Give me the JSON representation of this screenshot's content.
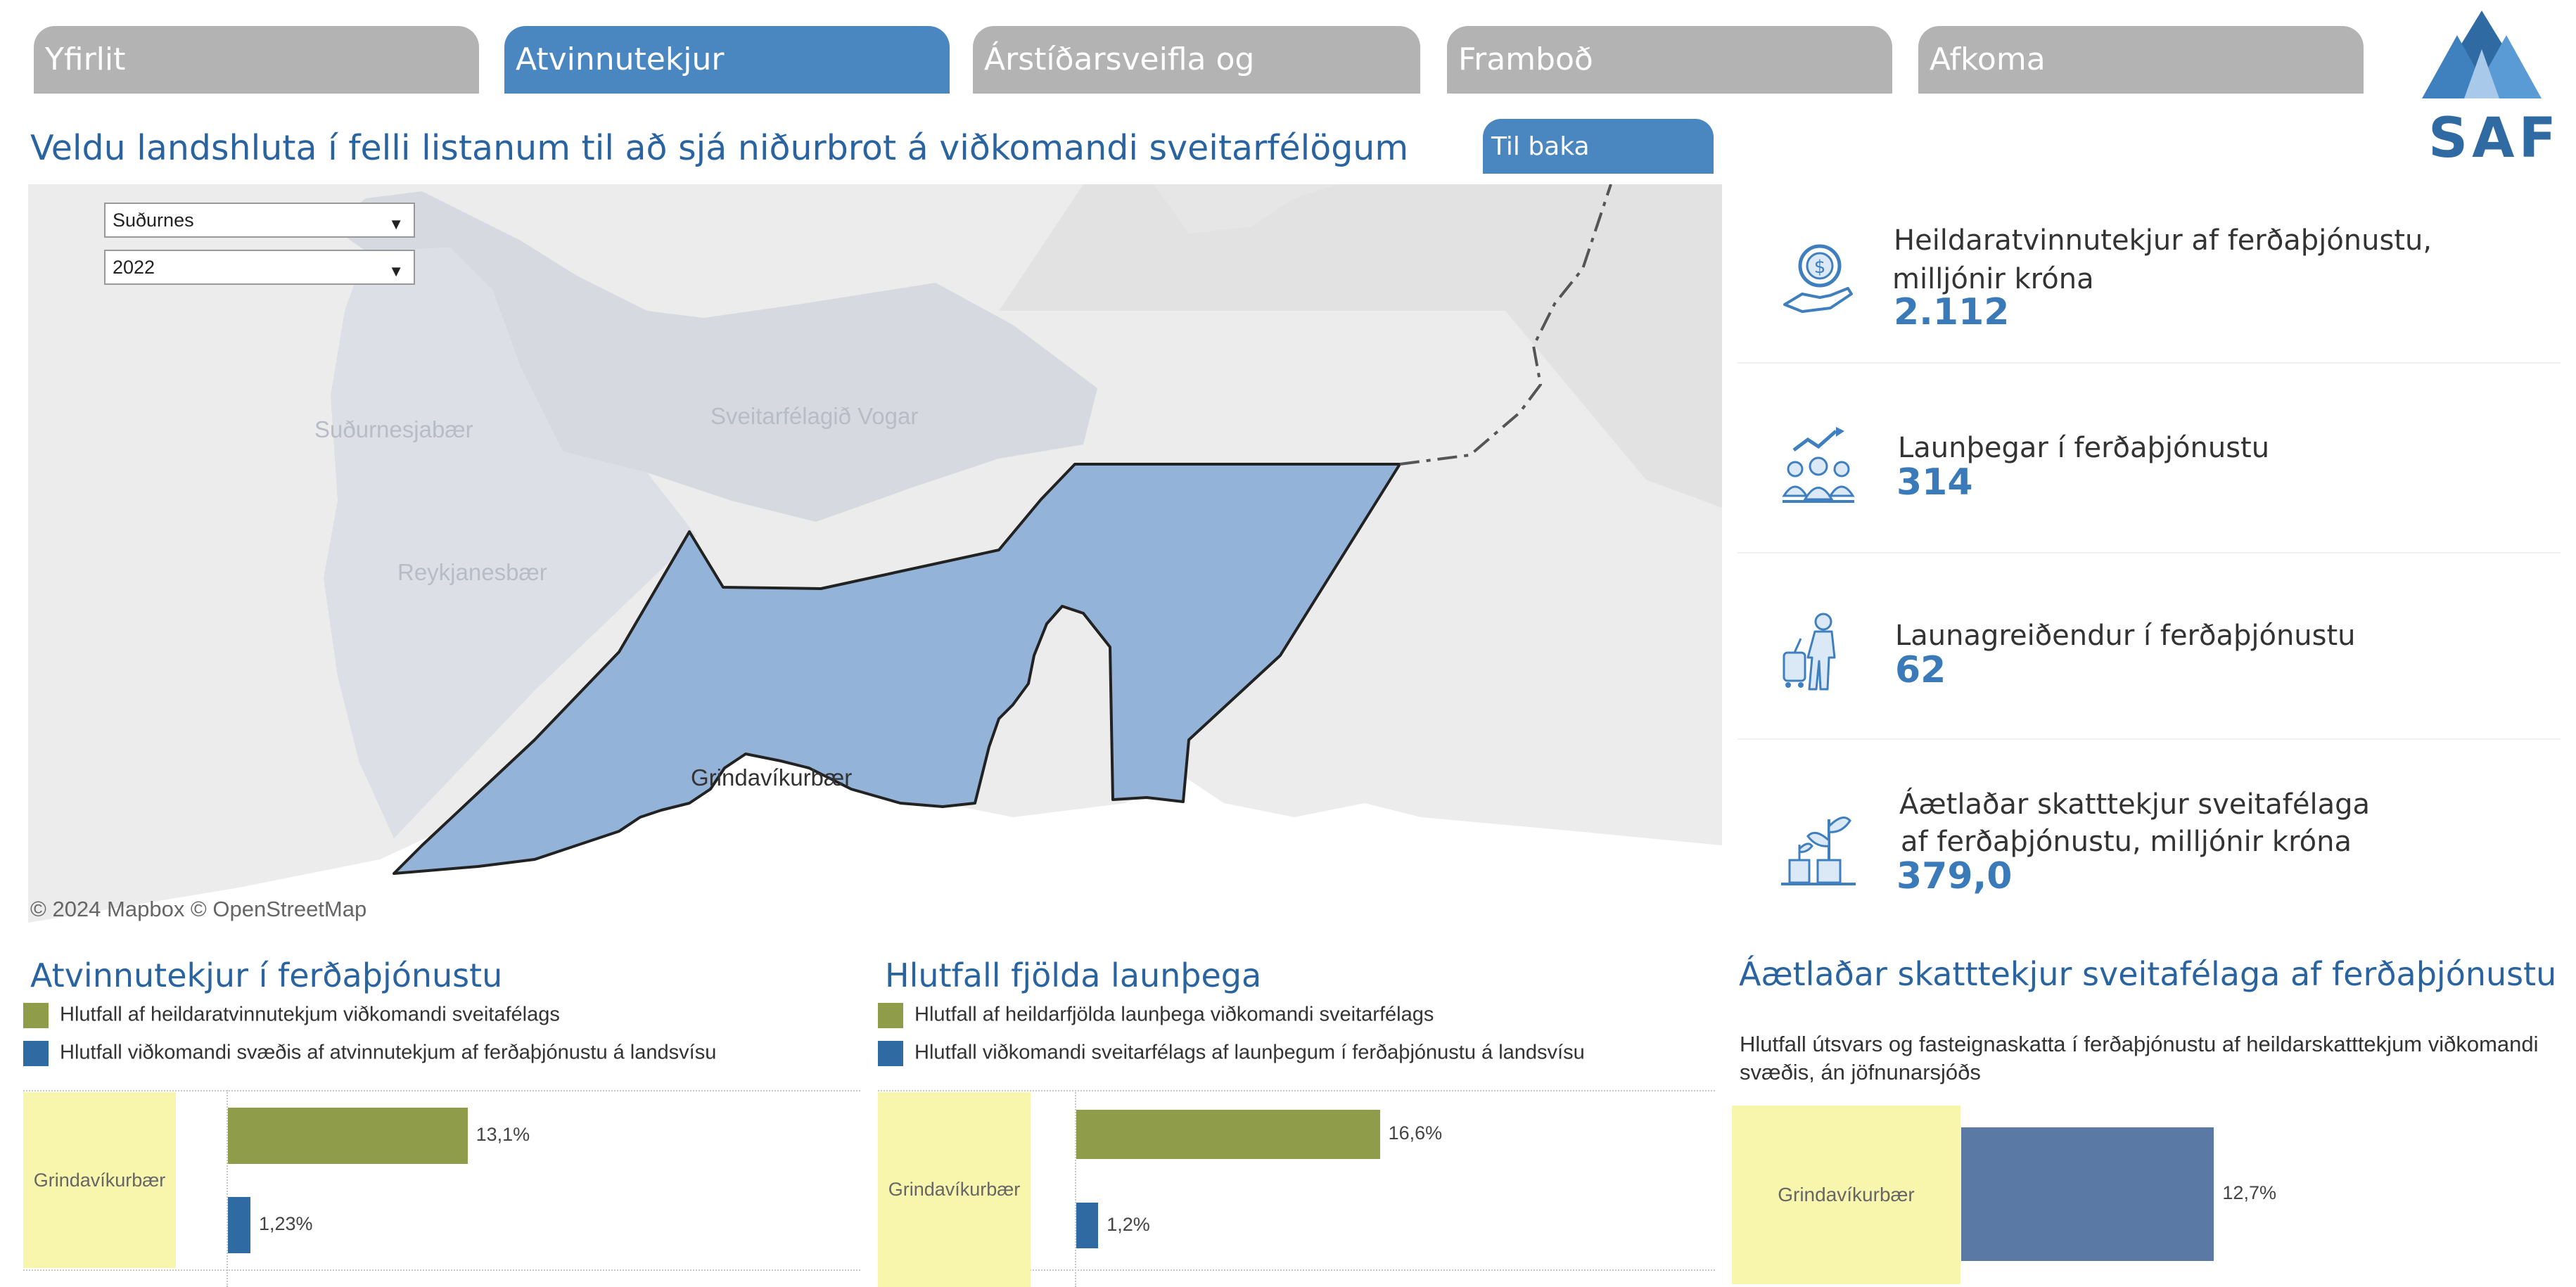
{
  "tabs": [
    {
      "label": "Yfirlit",
      "active": false
    },
    {
      "label": "Atvinnutekjur",
      "active": true
    },
    {
      "label": "Árstíðarsveifla og gistinætur",
      "active": false
    },
    {
      "label": "Framboð",
      "active": false
    },
    {
      "label": "Afkoma",
      "active": false
    }
  ],
  "logo": {
    "text": "SAF"
  },
  "header": {
    "title": "Veldu landshluta í felli listanum til að sjá niðurbrot á viðkomandi sveitarfélögum",
    "back_button": "Til baka"
  },
  "filters": {
    "region": "Suðurnes",
    "year": "2022"
  },
  "map": {
    "labels": {
      "sudurnesjabaer": "Suðurnesjabær",
      "vogar": "Sveitarfélagið Vogar",
      "reykjanesbaer": "Reykjanesbær",
      "grindavik": "Grindavíkurbær"
    },
    "credit": "© 2024 Mapbox  © OpenStreetMap",
    "colors": {
      "highlight": "#93b3d8",
      "land": "#d6d9df",
      "background": "#ebebeb"
    }
  },
  "kpis": [
    {
      "label_line1": "Heildaratvinnutekjur af ferðaþjónustu,",
      "label_line2": "milljónir króna",
      "value": "2.112",
      "icon": "money-hand-icon"
    },
    {
      "label_line1": "Launþegar í ferðaþjónustu",
      "label_line2": "",
      "value": "314",
      "icon": "employees-growth-icon"
    },
    {
      "label_line1": "Launagreiðendur í ferðaþjónustu",
      "label_line2": "",
      "value": "62",
      "icon": "traveler-icon"
    },
    {
      "label_line1": "Áætlaðar skatttekjur sveitafélaga",
      "label_line2": "af ferðaþjónustu, milljónir króna",
      "value": "379,0",
      "icon": "plant-coins-icon"
    }
  ],
  "charts": {
    "income": {
      "title": "Atvinnutekjur í ferðaþjónustu",
      "legend": [
        {
          "label": "Hlutfall af heildaratvinnutekjum viðkomandi sveitafélags",
          "color": "#8f9c4a"
        },
        {
          "label": "Hlutfall viðkomandi svæðis af atvinnutekjum af ferðaþjónustu á landsvísu",
          "color": "#2f6aa3"
        }
      ],
      "category": "Grindavíkurbær",
      "bars": [
        {
          "value": 13.1,
          "label": "13,1%",
          "color": "#8f9c4a"
        },
        {
          "value": 1.23,
          "label": "1,23%",
          "color": "#2f6aa3"
        }
      ]
    },
    "employees": {
      "title": "Hlutfall fjölda launþega",
      "legend": [
        {
          "label": "Hlutfall af heildarfjölda launþega viðkomandi sveitarfélags",
          "color": "#8f9c4a"
        },
        {
          "label": "Hlutfall viðkomandi sveitarfélags af launþegum í ferðaþjónustu á landsvísu",
          "color": "#2f6aa3"
        }
      ],
      "category": "Grindavíkurbær",
      "bars": [
        {
          "value": 16.6,
          "label": "16,6%",
          "color": "#8f9c4a"
        },
        {
          "value": 1.2,
          "label": "1,2%",
          "color": "#2f6aa3"
        }
      ]
    },
    "tax": {
      "title": "Áætlaðar skatttekjur sveitafélaga af ferðaþjónustu",
      "subtitle_line1": "Hlutfall útsvars og fasteignaskatta í ferðaþjónustu af heildarskatttekjum viðkomandi",
      "subtitle_line2": "svæðis, án jöfnunarsjóðs",
      "category": "Grindavíkurbær",
      "bars": [
        {
          "value": 12.7,
          "label": "12,7%",
          "color": "#5a79a5"
        }
      ]
    }
  },
  "chart_data": [
    {
      "type": "bar",
      "title": "Atvinnutekjur í ferðaþjónustu",
      "categories": [
        "Grindavíkurbær"
      ],
      "series": [
        {
          "name": "Hlutfall af heildaratvinnutekjum viðkomandi sveitafélags",
          "values": [
            13.1
          ]
        },
        {
          "name": "Hlutfall viðkomandi svæðis af atvinnutekjum af ferðaþjónustu á landsvísu",
          "values": [
            1.23
          ]
        }
      ]
    },
    {
      "type": "bar",
      "title": "Hlutfall fjölda launþega",
      "categories": [
        "Grindavíkurbær"
      ],
      "series": [
        {
          "name": "Hlutfall af heildarfjölda launþega viðkomandi sveitarfélags",
          "values": [
            16.6
          ]
        },
        {
          "name": "Hlutfall viðkomandi sveitarfélags af launþegum í ferðaþjónustu á landsvísu",
          "values": [
            1.2
          ]
        }
      ]
    },
    {
      "type": "bar",
      "title": "Áætlaðar skatttekjur sveitafélaga af ferðaþjónustu",
      "categories": [
        "Grindavíkurbær"
      ],
      "series": [
        {
          "name": "",
          "values": [
            12.7
          ]
        }
      ]
    }
  ]
}
